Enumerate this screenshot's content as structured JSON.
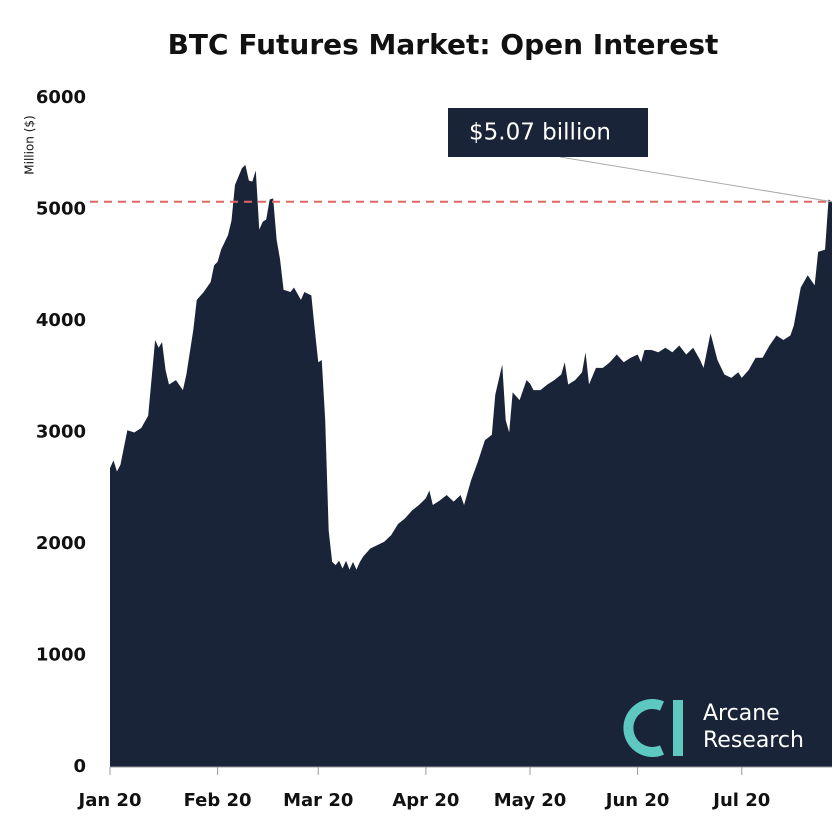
{
  "chart_data": {
    "type": "area",
    "title": "BTC Futures Market: Open Interest",
    "ylabel": "Million ($)",
    "color": "#1a2439",
    "x": [
      0,
      1,
      2,
      3,
      5,
      7,
      9,
      11,
      13,
      14,
      15,
      16,
      17,
      19,
      21,
      22,
      24,
      25,
      27,
      29,
      30,
      31,
      32,
      34,
      35,
      36,
      38,
      39,
      40,
      41,
      42,
      43,
      44,
      45,
      46,
      47,
      48,
      49,
      50,
      52,
      53,
      55,
      56,
      58,
      59,
      60,
      61,
      62,
      63,
      64,
      65,
      66,
      67,
      68,
      69,
      70,
      71,
      72,
      73,
      75,
      77,
      79,
      81,
      83,
      85,
      87,
      89,
      91,
      92,
      93,
      95,
      97,
      99,
      101,
      102,
      104,
      106,
      108,
      110,
      111,
      113,
      114,
      115,
      116,
      118,
      120,
      121,
      122,
      124,
      126,
      128,
      130,
      131,
      132,
      134,
      136,
      137,
      138,
      140,
      142,
      144,
      146,
      148,
      150,
      152,
      153,
      154,
      156,
      158,
      160,
      162,
      164,
      166,
      168,
      170,
      171,
      173,
      175,
      177,
      179,
      181,
      182,
      184,
      186,
      188,
      190,
      192,
      194,
      196,
      197,
      199,
      201,
      203,
      204,
      206,
      207,
      208
    ],
    "values": [
      2680,
      2750,
      2650,
      2710,
      3020,
      3000,
      3040,
      3150,
      3830,
      3760,
      3810,
      3560,
      3430,
      3470,
      3380,
      3520,
      3920,
      4190,
      4260,
      4350,
      4500,
      4530,
      4640,
      4770,
      4900,
      5220,
      5370,
      5400,
      5260,
      5250,
      5350,
      4820,
      4890,
      4910,
      5090,
      5100,
      4730,
      4550,
      4280,
      4260,
      4300,
      4190,
      4260,
      4230,
      3920,
      3630,
      3650,
      3110,
      2120,
      1840,
      1810,
      1850,
      1780,
      1850,
      1770,
      1840,
      1770,
      1840,
      1890,
      1960,
      1990,
      2020,
      2080,
      2180,
      2230,
      2300,
      2350,
      2410,
      2480,
      2350,
      2390,
      2440,
      2380,
      2440,
      2350,
      2570,
      2740,
      2930,
      2980,
      3340,
      3610,
      3110,
      3000,
      3360,
      3290,
      3470,
      3440,
      3380,
      3380,
      3430,
      3470,
      3520,
      3630,
      3430,
      3470,
      3540,
      3720,
      3430,
      3580,
      3580,
      3630,
      3700,
      3630,
      3670,
      3700,
      3630,
      3740,
      3740,
      3720,
      3760,
      3720,
      3780,
      3700,
      3760,
      3650,
      3580,
      3890,
      3650,
      3520,
      3490,
      3540,
      3490,
      3560,
      3670,
      3670,
      3780,
      3870,
      3830,
      3870,
      3960,
      4300,
      4410,
      4320,
      4620,
      4640,
      5090,
      5070
    ],
    "xlim": [
      0,
      208
    ],
    "xticks": [
      {
        "value": 0,
        "label": "Jan 20"
      },
      {
        "value": 31,
        "label": "Feb 20"
      },
      {
        "value": 60,
        "label": "Mar 20"
      },
      {
        "value": 91,
        "label": "Apr 20"
      },
      {
        "value": 121,
        "label": "May 20"
      },
      {
        "value": 152,
        "label": "Jun 20"
      },
      {
        "value": 182,
        "label": "Jul 20"
      }
    ],
    "ylim": [
      0,
      6000
    ],
    "yticks": [
      0,
      1000,
      2000,
      3000,
      4000,
      5000,
      6000
    ],
    "hline": {
      "value": 5070,
      "color": "#e06666"
    },
    "annotation": "$5.07 billion",
    "watermark": [
      "Arcane",
      "Research"
    ]
  }
}
